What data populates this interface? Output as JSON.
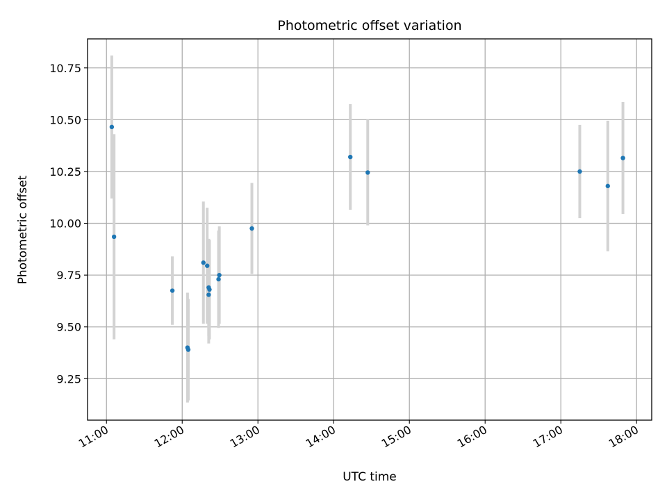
{
  "chart_data": {
    "type": "scatter",
    "title": "Photometric offset variation",
    "xlabel": "UTC time",
    "ylabel": "Photometric offset",
    "x_unit": "hours UTC",
    "xlim": [
      10.75,
      18.2
    ],
    "ylim": [
      9.05,
      10.89
    ],
    "x_ticks": [
      {
        "value": 11,
        "label": "11:00"
      },
      {
        "value": 12,
        "label": "12:00"
      },
      {
        "value": 13,
        "label": "13:00"
      },
      {
        "value": 14,
        "label": "14:00"
      },
      {
        "value": 15,
        "label": "15:00"
      },
      {
        "value": 16,
        "label": "16:00"
      },
      {
        "value": 17,
        "label": "17:00"
      },
      {
        "value": 18,
        "label": "18:00"
      }
    ],
    "y_ticks": [
      {
        "value": 9.25,
        "label": "9.25"
      },
      {
        "value": 9.5,
        "label": "9.50"
      },
      {
        "value": 9.75,
        "label": "9.75"
      },
      {
        "value": 10.0,
        "label": "10.00"
      },
      {
        "value": 10.25,
        "label": "10.25"
      },
      {
        "value": 10.5,
        "label": "10.50"
      },
      {
        "value": 10.75,
        "label": "10.75"
      }
    ],
    "grid": true,
    "point_color": "#1f77b4",
    "errorbar_color": "#d3d3d3",
    "points": [
      {
        "x": 11.07,
        "y": 10.465,
        "err": 0.345
      },
      {
        "x": 11.1,
        "y": 9.935,
        "err": 0.495
      },
      {
        "x": 11.87,
        "y": 9.675,
        "err": 0.165
      },
      {
        "x": 12.07,
        "y": 9.4,
        "err": 0.265
      },
      {
        "x": 12.08,
        "y": 9.39,
        "err": 0.245
      },
      {
        "x": 12.28,
        "y": 9.81,
        "err": 0.295
      },
      {
        "x": 12.33,
        "y": 9.795,
        "err": 0.28
      },
      {
        "x": 12.35,
        "y": 9.69,
        "err": 0.235
      },
      {
        "x": 12.36,
        "y": 9.68,
        "err": 0.24
      },
      {
        "x": 12.35,
        "y": 9.655,
        "err": 0.235
      },
      {
        "x": 12.48,
        "y": 9.73,
        "err": 0.235
      },
      {
        "x": 12.49,
        "y": 9.75,
        "err": 0.235
      },
      {
        "x": 12.92,
        "y": 9.975,
        "err": 0.22
      },
      {
        "x": 14.22,
        "y": 10.32,
        "err": 0.255
      },
      {
        "x": 14.45,
        "y": 10.245,
        "err": 0.255
      },
      {
        "x": 17.25,
        "y": 10.25,
        "err": 0.225
      },
      {
        "x": 17.62,
        "y": 10.18,
        "err": 0.315
      },
      {
        "x": 17.82,
        "y": 10.315,
        "err": 0.27
      }
    ]
  }
}
